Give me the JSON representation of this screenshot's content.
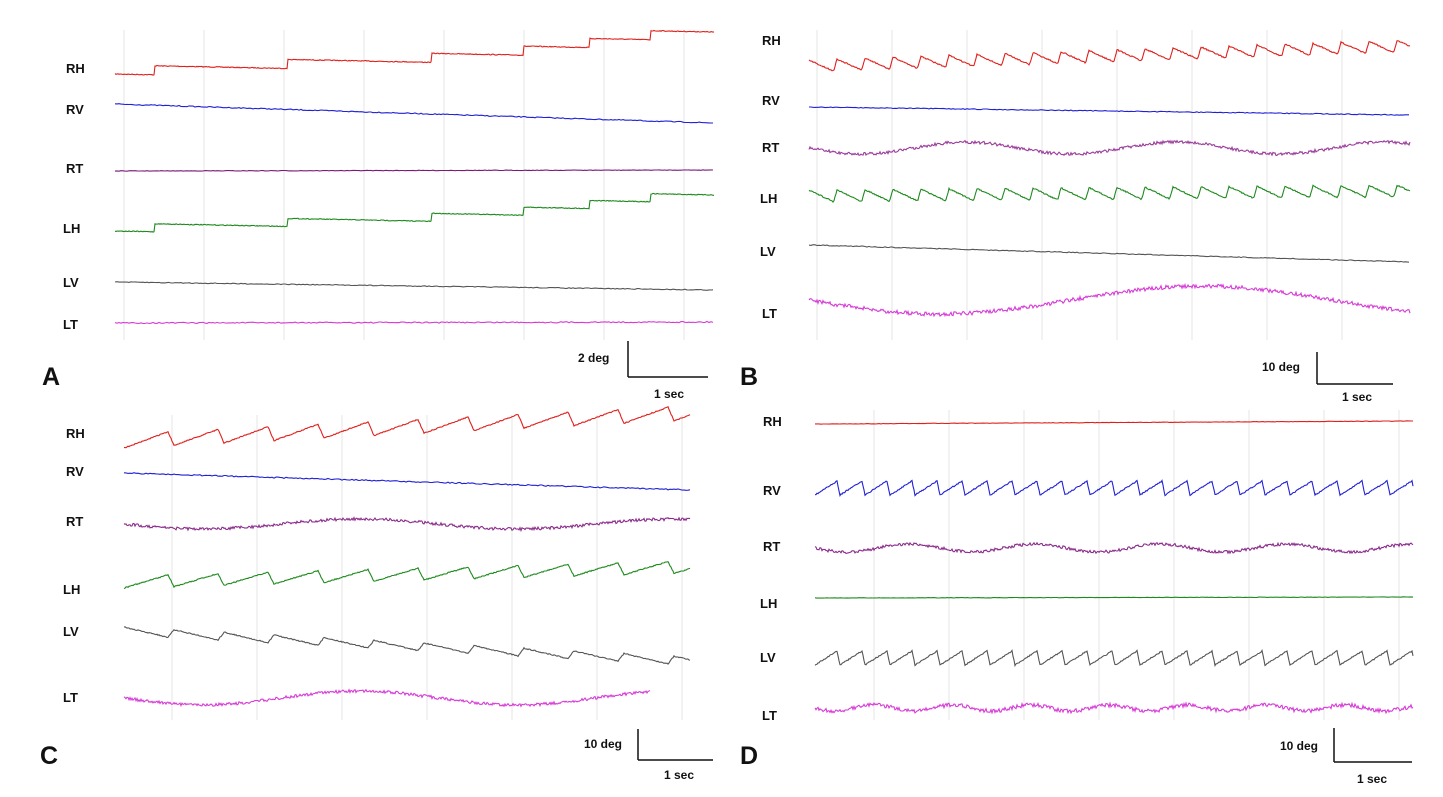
{
  "chart_data": [
    {
      "panel": "A",
      "type": "line",
      "scale": {
        "amplitude": "2 deg",
        "time": "1 sec"
      },
      "series": [
        {
          "name": "RH",
          "color": "#e0201c"
        },
        {
          "name": "RV",
          "color": "#2020d8"
        },
        {
          "name": "RT",
          "color": "#7a1a7a"
        },
        {
          "name": "LH",
          "color": "#1e8a1e"
        },
        {
          "name": "LV",
          "color": "#555555"
        },
        {
          "name": "LT",
          "color": "#d63ad6"
        }
      ]
    },
    {
      "panel": "B",
      "type": "line",
      "scale": {
        "amplitude": "10 deg",
        "time": "1 sec"
      },
      "series": [
        {
          "name": "RH",
          "color": "#e0201c"
        },
        {
          "name": "RV",
          "color": "#2020d8"
        },
        {
          "name": "RT",
          "color": "#9a3a9a"
        },
        {
          "name": "LH",
          "color": "#1e8a1e"
        },
        {
          "name": "LV",
          "color": "#555555"
        },
        {
          "name": "LT",
          "color": "#d63ad6"
        }
      ]
    },
    {
      "panel": "C",
      "type": "line",
      "scale": {
        "amplitude": "10 deg",
        "time": "1 sec"
      },
      "series": [
        {
          "name": "RH",
          "color": "#e0201c"
        },
        {
          "name": "RV",
          "color": "#2020d8"
        },
        {
          "name": "RT",
          "color": "#8a2a8a"
        },
        {
          "name": "LH",
          "color": "#1e8a1e"
        },
        {
          "name": "LV",
          "color": "#555555"
        },
        {
          "name": "LT",
          "color": "#d63ad6"
        }
      ]
    },
    {
      "panel": "D",
      "type": "line",
      "scale": {
        "amplitude": "10 deg",
        "time": "1 sec"
      },
      "series": [
        {
          "name": "RH",
          "color": "#e0201c"
        },
        {
          "name": "RV",
          "color": "#2020d8"
        },
        {
          "name": "RT",
          "color": "#8a2a8a"
        },
        {
          "name": "LH",
          "color": "#1e8a1e"
        },
        {
          "name": "LV",
          "color": "#555555"
        },
        {
          "name": "LT",
          "color": "#d63ad6"
        }
      ]
    }
  ]
}
